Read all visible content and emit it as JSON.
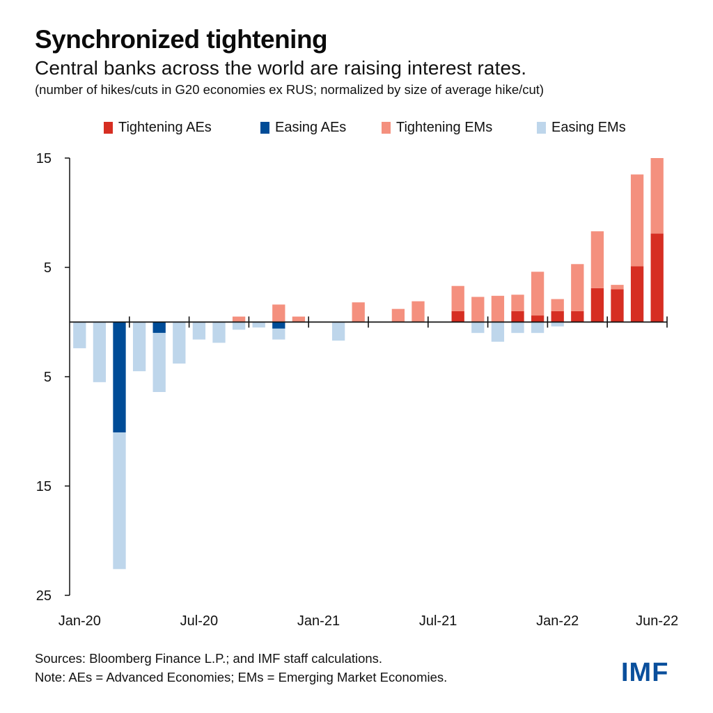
{
  "header": {
    "title": "Synchronized tightening",
    "subtitle": "Central banks across the world are raising interest rates.",
    "note": "(number of hikes/cuts in G20 economies ex RUS; normalized by size of average hike/cut)"
  },
  "legend": [
    {
      "label": "Tightening AEs",
      "color": "#d62e22"
    },
    {
      "label": "Easing AEs",
      "color": "#004c97"
    },
    {
      "label": "Tightening EMs",
      "color": "#f4907e"
    },
    {
      "label": "Easing EMs",
      "color": "#bed6eb"
    }
  ],
  "footer": {
    "sources": "Sources: Bloomberg Finance L.P.; and IMF staff calculations.",
    "note": "Note: AEs = Advanced Economies; EMs = Emerging Market Economies.",
    "logo": "IMF"
  },
  "chart_data": {
    "type": "bar",
    "stacked": true,
    "title": "Synchronized tightening",
    "subtitle": "Central banks across the world are raising interest rates.",
    "xlabel": "",
    "ylabel": "",
    "ylim": [
      -25,
      15
    ],
    "yticks": [
      15,
      5,
      -5,
      -15,
      -25
    ],
    "ytick_labels": [
      "15",
      "5",
      "5",
      "15",
      "25"
    ],
    "grid": false,
    "legend_position": "top-center",
    "categories": [
      "Jan-20",
      "Feb-20",
      "Mar-20",
      "Apr-20",
      "May-20",
      "Jun-20",
      "Jul-20",
      "Aug-20",
      "Sep-20",
      "Oct-20",
      "Nov-20",
      "Dec-20",
      "Jan-21",
      "Feb-21",
      "Mar-21",
      "Apr-21",
      "May-21",
      "Jun-21",
      "Jul-21",
      "Aug-21",
      "Sep-21",
      "Oct-21",
      "Nov-21",
      "Dec-21",
      "Jan-22",
      "Feb-22",
      "Mar-22",
      "Apr-22",
      "May-22",
      "Jun-22"
    ],
    "xtick_labels": [
      {
        "index": 0,
        "label": "Jan-20"
      },
      {
        "index": 6,
        "label": "Jul-20"
      },
      {
        "index": 12,
        "label": "Jan-21"
      },
      {
        "index": 18,
        "label": "Jul-21"
      },
      {
        "index": 24,
        "label": "Jan-22"
      },
      {
        "index": 29,
        "label": "Jun-22"
      }
    ],
    "series": [
      {
        "name": "Tightening AEs",
        "color": "#d62e22",
        "values": [
          0,
          0,
          0,
          0,
          0,
          0,
          0,
          0,
          0,
          0,
          0,
          0,
          0,
          0,
          0,
          0,
          0,
          0,
          0,
          1.0,
          0,
          0,
          1.0,
          0.6,
          1.0,
          1.0,
          3.1,
          3.0,
          5.1,
          8.1
        ]
      },
      {
        "name": "Tightening EMs",
        "color": "#f4907e",
        "values": [
          0,
          0,
          0,
          0,
          0,
          0,
          0,
          0,
          0.5,
          0,
          1.6,
          0.5,
          0,
          0,
          1.8,
          0,
          1.2,
          1.9,
          0,
          2.3,
          2.3,
          2.4,
          1.5,
          4.0,
          1.1,
          4.3,
          5.2,
          0.4,
          8.4,
          6.9
        ]
      },
      {
        "name": "Easing AEs",
        "color": "#004c97",
        "values": [
          0,
          0,
          -10.1,
          0,
          -1.0,
          0,
          0,
          0,
          0,
          0,
          -0.6,
          0,
          0,
          0,
          0,
          0,
          0,
          0,
          0,
          0,
          0,
          0,
          0,
          0,
          0,
          0,
          0,
          0,
          0,
          0
        ]
      },
      {
        "name": "Easing EMs",
        "color": "#bed6eb",
        "values": [
          -2.4,
          -5.5,
          -12.5,
          -4.5,
          -5.4,
          -3.8,
          -1.6,
          -1.9,
          -0.7,
          -0.5,
          -1.0,
          0,
          0,
          -1.7,
          0,
          0,
          0,
          0,
          0,
          0,
          -1.0,
          -1.8,
          -1.0,
          -1.0,
          -0.4,
          0,
          0,
          0,
          0,
          0
        ]
      }
    ]
  }
}
